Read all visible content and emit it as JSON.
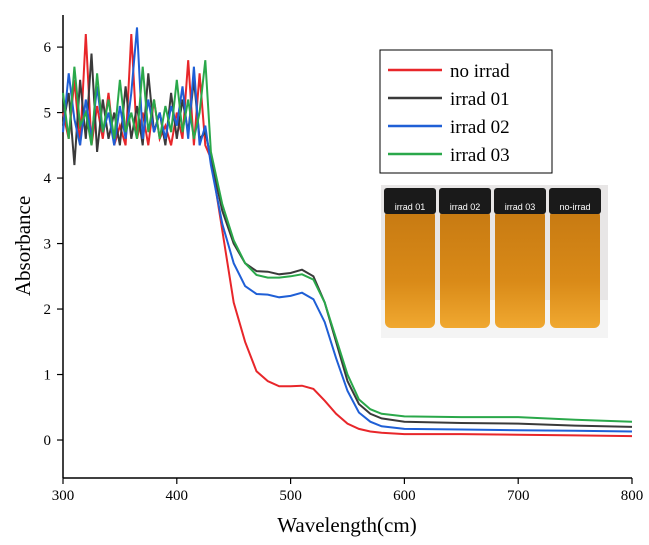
{
  "chart_data": {
    "type": "line",
    "x_label": "Wavelength(cm)",
    "y_label": "Absorbance",
    "x": [
      300,
      305,
      310,
      315,
      320,
      325,
      330,
      335,
      340,
      345,
      350,
      355,
      360,
      365,
      370,
      375,
      380,
      385,
      390,
      395,
      400,
      405,
      410,
      415,
      420,
      425,
      430,
      440,
      450,
      460,
      470,
      480,
      490,
      500,
      510,
      520,
      530,
      540,
      550,
      560,
      570,
      580,
      600,
      650,
      700,
      750,
      800
    ],
    "series": [
      {
        "name": "no irrad",
        "color": "#e8262a",
        "values": [
          5.0,
          4.6,
          5.5,
          4.5,
          6.2,
          4.5,
          5.1,
          4.6,
          5.3,
          4.5,
          4.8,
          4.5,
          6.2,
          4.6,
          5.0,
          4.5,
          5.2,
          4.6,
          4.8,
          4.5,
          5.0,
          4.6,
          5.8,
          4.5,
          5.6,
          4.5,
          4.3,
          3.2,
          2.1,
          1.5,
          1.05,
          0.9,
          0.82,
          0.82,
          0.83,
          0.78,
          0.6,
          0.4,
          0.25,
          0.17,
          0.13,
          0.11,
          0.09,
          0.09,
          0.08,
          0.07,
          0.06
        ]
      },
      {
        "name": "irrad 01",
        "color": "#3a3a3a",
        "values": [
          4.8,
          5.3,
          4.2,
          5.5,
          4.6,
          5.9,
          4.4,
          5.2,
          4.6,
          5.0,
          4.5,
          5.4,
          4.6,
          5.1,
          4.5,
          5.6,
          4.7,
          5.0,
          4.5,
          5.3,
          4.6,
          5.2,
          4.7,
          5.5,
          4.6,
          4.7,
          4.3,
          3.5,
          3.0,
          2.7,
          2.58,
          2.57,
          2.53,
          2.55,
          2.6,
          2.5,
          2.1,
          1.5,
          0.9,
          0.55,
          0.4,
          0.33,
          0.28,
          0.26,
          0.25,
          0.22,
          0.2
        ]
      },
      {
        "name": "irrad 02",
        "color": "#1f5fd6",
        "values": [
          4.7,
          5.6,
          4.9,
          4.5,
          5.2,
          4.6,
          5.4,
          4.7,
          5.0,
          4.5,
          5.1,
          4.6,
          5.3,
          6.3,
          4.6,
          5.2,
          4.7,
          5.0,
          4.6,
          5.1,
          4.8,
          5.4,
          4.6,
          5.7,
          4.5,
          4.8,
          4.2,
          3.3,
          2.7,
          2.35,
          2.23,
          2.22,
          2.18,
          2.2,
          2.25,
          2.15,
          1.8,
          1.25,
          0.75,
          0.42,
          0.28,
          0.21,
          0.17,
          0.16,
          0.15,
          0.14,
          0.13
        ]
      },
      {
        "name": "irrad 03",
        "color": "#2aa84a",
        "values": [
          5.3,
          4.6,
          5.7,
          4.8,
          5.0,
          4.5,
          5.6,
          4.7,
          5.2,
          4.6,
          5.5,
          4.7,
          5.0,
          4.6,
          5.7,
          4.7,
          5.2,
          4.6,
          5.1,
          4.7,
          5.5,
          4.7,
          5.2,
          4.6,
          5.0,
          5.8,
          4.4,
          3.6,
          3.05,
          2.7,
          2.52,
          2.48,
          2.48,
          2.5,
          2.53,
          2.45,
          2.1,
          1.55,
          1.0,
          0.62,
          0.47,
          0.4,
          0.36,
          0.35,
          0.35,
          0.31,
          0.28
        ]
      }
    ],
    "xlim": [
      300,
      800
    ],
    "xticks": [
      300,
      400,
      500,
      600,
      700,
      800
    ],
    "ylim": [
      -0.58,
      6.49
    ],
    "yticks": [
      0,
      1,
      2,
      3,
      4,
      5,
      6
    ],
    "legend": "top right",
    "inset_labels": [
      "irrad 01",
      "irrad 02",
      "irrad 03",
      "no-irrad"
    ]
  }
}
